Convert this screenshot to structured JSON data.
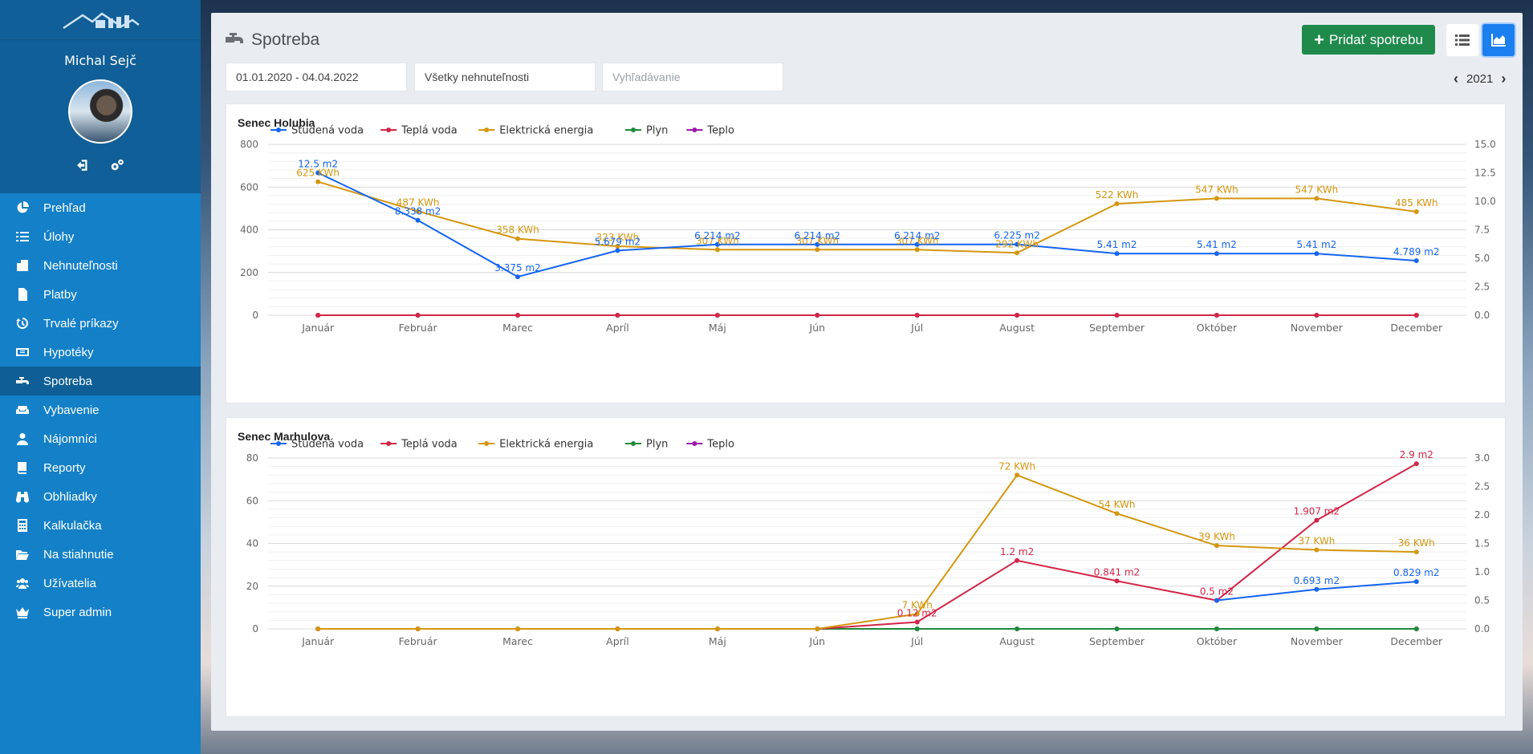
{
  "sidebar": {
    "user_name": "Michal Sejč",
    "items": [
      {
        "label": "Prehľad",
        "icon": "pie-chart-icon",
        "active": false
      },
      {
        "label": "Úlohy",
        "icon": "tasks-icon",
        "active": false
      },
      {
        "label": "Nehnuteľnosti",
        "icon": "building-icon",
        "active": false
      },
      {
        "label": "Platby",
        "icon": "invoice-icon",
        "active": false
      },
      {
        "label": "Trvalé príkazy",
        "icon": "history-icon",
        "active": false
      },
      {
        "label": "Hypotéky",
        "icon": "money-bill-icon",
        "active": false
      },
      {
        "label": "Spotreba",
        "icon": "faucet-icon",
        "active": true
      },
      {
        "label": "Vybavenie",
        "icon": "couch-icon",
        "active": false
      },
      {
        "label": "Nájomníci",
        "icon": "user-icon",
        "active": false
      },
      {
        "label": "Reporty",
        "icon": "book-icon",
        "active": false
      },
      {
        "label": "Obhliadky",
        "icon": "binoculars-icon",
        "active": false
      },
      {
        "label": "Kalkulačka",
        "icon": "calculator-icon",
        "active": false
      },
      {
        "label": "Na stiahnutie",
        "icon": "folder-open-icon",
        "active": false
      },
      {
        "label": "Užívatelia",
        "icon": "users-icon",
        "active": false
      },
      {
        "label": "Super admin",
        "icon": "crown-icon",
        "active": false
      }
    ]
  },
  "header": {
    "title": "Spotreba",
    "add_button": "Pridať spotrebu",
    "date_range": "01.01.2020 - 04.04.2022",
    "property_filter": "Všetky nehnuteľnosti",
    "search_placeholder": "Vyhľadávanie",
    "year": "2021"
  },
  "colors": {
    "studena_voda": "#1565f0",
    "tepla_voda": "#d32548",
    "elektricka_energia": "#d4960f",
    "plyn": "#1f8a3a",
    "teplo": "#9c1aa8"
  },
  "chart_data": [
    {
      "type": "line",
      "title": "Senec Holubia",
      "legend": [
        "Studená voda",
        "Teplá voda",
        "Elektrická energia",
        "Plyn",
        "Teplo"
      ],
      "legend_placement": "top-left",
      "categories": [
        "Január",
        "Február",
        "Marec",
        "Apríl",
        "Máj",
        "Jún",
        "Júl",
        "August",
        "September",
        "Október",
        "November",
        "December"
      ],
      "y_left": {
        "min": 0,
        "max": 800,
        "ticks": [
          "0",
          "200",
          "400",
          "600",
          "800"
        ]
      },
      "y_right": {
        "min": 0,
        "max": 15,
        "ticks": [
          "0.0",
          "2.5",
          "5.0",
          "7.5",
          "10.0",
          "12.5",
          "15.0"
        ]
      },
      "grid": true,
      "series": [
        {
          "name": "Studená voda",
          "axis": "right",
          "values": [
            12.5,
            8.338,
            3.375,
            5.679,
            6.214,
            6.214,
            6.214,
            6.225,
            5.41,
            5.41,
            5.41,
            4.789
          ],
          "labels": [
            "12.5 m2",
            "8.338 m2",
            "3.375 m2",
            "5.679 m2",
            "6.214 m2",
            "6.214 m2",
            "6.214 m2",
            "6.225 m2",
            "5.41 m2",
            "5.41 m2",
            "5.41 m2",
            "4.789 m2"
          ]
        },
        {
          "name": "Teplá voda",
          "axis": "right",
          "values": [
            0,
            0,
            0,
            0,
            0,
            0,
            0,
            0,
            0,
            0,
            0,
            0
          ],
          "labels": []
        },
        {
          "name": "Elektrická energia",
          "axis": "left",
          "values": [
            625,
            487,
            358,
            323,
            307,
            307,
            307,
            292,
            522,
            547,
            547,
            485
          ],
          "labels": [
            "625 KWh",
            "487 KWh",
            "358 KWh",
            "323 KWh",
            "307 KWh",
            "307 KWh",
            "307 KWh",
            "292 KWh",
            "522 KWh",
            "547 KWh",
            "547 KWh",
            "485 KWh"
          ]
        },
        {
          "name": "Plyn",
          "axis": "left",
          "values": [
            0,
            0,
            0,
            0,
            0,
            0,
            0,
            0,
            0,
            0,
            0,
            0
          ],
          "labels": []
        },
        {
          "name": "Teplo",
          "axis": "left",
          "values": [
            0,
            0,
            0,
            0,
            0,
            0,
            0,
            0,
            0,
            0,
            0,
            0
          ],
          "labels": []
        }
      ]
    },
    {
      "type": "line",
      "title": "Senec Marhulova",
      "legend": [
        "Studená voda",
        "Teplá voda",
        "Elektrická energia",
        "Plyn",
        "Teplo"
      ],
      "legend_placement": "top-left",
      "categories": [
        "Január",
        "Február",
        "Marec",
        "Apríl",
        "Máj",
        "Jún",
        "Júl",
        "August",
        "September",
        "Október",
        "November",
        "December"
      ],
      "y_left": {
        "min": 0,
        "max": 80,
        "ticks": [
          "0",
          "20",
          "40",
          "60",
          "80"
        ]
      },
      "y_right": {
        "min": 0,
        "max": 3,
        "ticks": [
          "0.0",
          "0.5",
          "1.0",
          "1.5",
          "2.0",
          "2.5",
          "3.0"
        ]
      },
      "grid": true,
      "series": [
        {
          "name": "Studená voda",
          "axis": "right",
          "values": [
            null,
            null,
            null,
            null,
            null,
            null,
            null,
            null,
            null,
            0.5,
            0.693,
            0.829
          ],
          "labels": [
            "",
            "",
            "",
            "",
            "",
            "",
            "",
            "",
            "",
            "",
            "0.693 m2",
            "0.829 m2"
          ]
        },
        {
          "name": "Teplá voda",
          "axis": "right",
          "values": [
            0,
            0,
            0,
            0,
            0,
            0,
            0.12,
            1.2,
            0.841,
            0.5,
            1.907,
            2.9
          ],
          "labels": [
            "",
            "",
            "",
            "",
            "",
            "",
            "0.12 m2",
            "1.2 m2",
            "0.841 m2",
            "0.5 m2",
            "1.907 m2",
            "2.9 m2"
          ]
        },
        {
          "name": "Elektrická energia",
          "axis": "left",
          "values": [
            0,
            0,
            0,
            0,
            0,
            0,
            7,
            72,
            54,
            39,
            37,
            36
          ],
          "labels": [
            "",
            "",
            "",
            "",
            "",
            "",
            "7 KWh",
            "72 KWh",
            "54 KWh",
            "39 KWh",
            "37 KWh",
            "36 KWh"
          ]
        },
        {
          "name": "Plyn",
          "axis": "left",
          "values": [
            0,
            0,
            0,
            0,
            0,
            0,
            0,
            0,
            0,
            0,
            0,
            0
          ],
          "labels": []
        },
        {
          "name": "Teplo",
          "axis": "left",
          "values": [
            0,
            0,
            0,
            0,
            0,
            0,
            0,
            0,
            0,
            0,
            0,
            0
          ],
          "labels": []
        }
      ]
    }
  ]
}
